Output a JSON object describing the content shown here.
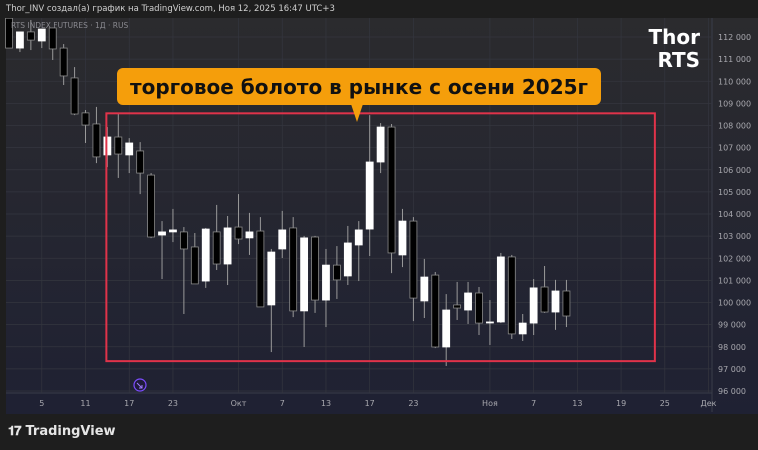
{
  "header": {
    "text": "Thor_INV создал(а) график на TradingView.com, Ноя 12, 2025 16:47 UTC+3"
  },
  "legend": {
    "symbol": "RTS INDEX FUTURES · 1Д · RUS"
  },
  "watermark": {
    "line1": "Thor",
    "line2": "RTS"
  },
  "annotation": {
    "text": "торговое болото в рынке с осени 2025г",
    "color": "#f59e0b"
  },
  "footer": {
    "brand": "TradingView",
    "logo": "TV"
  },
  "event_icon": "arrow-circle-icon",
  "chart_data": {
    "type": "candlestick",
    "title": "",
    "timeframe": "1D",
    "ylim": [
      96000,
      113000
    ],
    "grid": true,
    "colors": {
      "up": "#ffffff",
      "down": "#000000",
      "wick": "#9a9a9a",
      "box": "#e0334a",
      "background_top": "#2b2b2e",
      "background_bottom": "#1f2133"
    },
    "y_ticks": [
      112000,
      111000,
      110000,
      109000,
      108000,
      107000,
      106000,
      105000,
      104000,
      103000,
      102000,
      101000,
      100000,
      99000,
      98000,
      97000,
      96000
    ],
    "y_tick_labels": [
      "112 000",
      "111 000",
      "110 000",
      "109 000",
      "108 000",
      "107 000",
      "106 000",
      "105 000",
      "104 000",
      "103 000",
      "102 000",
      "101 000",
      "100 000",
      "99 000",
      "98 000",
      "97 000",
      "96 000"
    ],
    "x_ticks": [
      {
        "label": "5",
        "date": "2025-09-05"
      },
      {
        "label": "11",
        "date": "2025-09-11"
      },
      {
        "label": "17",
        "date": "2025-09-17"
      },
      {
        "label": "23",
        "date": "2025-09-23"
      },
      {
        "label": "Окт",
        "date": "2025-10-01"
      },
      {
        "label": "7",
        "date": "2025-10-07"
      },
      {
        "label": "13",
        "date": "2025-10-13"
      },
      {
        "label": "17",
        "date": "2025-10-17"
      },
      {
        "label": "23",
        "date": "2025-10-23"
      },
      {
        "label": "Ноя",
        "date": "2025-11-01"
      },
      {
        "label": "7",
        "date": "2025-11-07"
      },
      {
        "label": "13",
        "date": "2025-11-13"
      },
      {
        "label": "19",
        "date": "2025-11-19"
      },
      {
        "label": "25",
        "date": "2025-11-25"
      },
      {
        "label": "Дек",
        "date": "2025-12-01"
      }
    ],
    "highlight_box": {
      "from_date": "2025-09-15",
      "to_date": "2025-11-24",
      "high": 108550,
      "low": 97350
    },
    "candles": [
      {
        "date": "2025-09-02",
        "o": 112850,
        "h": 112850,
        "l": 111500,
        "c": 111500
      },
      {
        "date": "2025-09-03",
        "o": 111500,
        "h": 112230,
        "l": 111320,
        "c": 112230
      },
      {
        "date": "2025-09-04",
        "o": 112230,
        "h": 112770,
        "l": 111410,
        "c": 111860
      },
      {
        "date": "2025-09-05",
        "o": 111820,
        "h": 112360,
        "l": 111500,
        "c": 112360
      },
      {
        "date": "2025-09-08",
        "o": 112410,
        "h": 112410,
        "l": 110960,
        "c": 111460
      },
      {
        "date": "2025-09-09",
        "o": 111500,
        "h": 111680,
        "l": 109830,
        "c": 110240
      },
      {
        "date": "2025-09-10",
        "o": 110150,
        "h": 110640,
        "l": 108470,
        "c": 108520
      },
      {
        "date": "2025-09-11",
        "o": 108570,
        "h": 108700,
        "l": 107210,
        "c": 108020
      },
      {
        "date": "2025-09-12",
        "o": 108070,
        "h": 108840,
        "l": 106300,
        "c": 106580
      },
      {
        "date": "2025-09-15",
        "o": 106670,
        "h": 107930,
        "l": 106120,
        "c": 107480
      },
      {
        "date": "2025-09-16",
        "o": 107480,
        "h": 108520,
        "l": 105630,
        "c": 106710
      },
      {
        "date": "2025-09-17",
        "o": 106670,
        "h": 107430,
        "l": 105850,
        "c": 107210
      },
      {
        "date": "2025-09-18",
        "o": 106850,
        "h": 107250,
        "l": 104900,
        "c": 105850
      },
      {
        "date": "2025-09-19",
        "o": 105760,
        "h": 105850,
        "l": 102910,
        "c": 102960
      },
      {
        "date": "2025-09-22",
        "o": 103050,
        "h": 103680,
        "l": 101060,
        "c": 103190
      },
      {
        "date": "2025-09-23",
        "o": 103190,
        "h": 104230,
        "l": 102730,
        "c": 103280
      },
      {
        "date": "2025-09-24",
        "o": 103190,
        "h": 103410,
        "l": 99480,
        "c": 102420
      },
      {
        "date": "2025-09-25",
        "o": 102510,
        "h": 103140,
        "l": 100840,
        "c": 100840
      },
      {
        "date": "2025-09-26",
        "o": 100970,
        "h": 103370,
        "l": 100660,
        "c": 103320
      },
      {
        "date": "2025-09-29",
        "o": 103190,
        "h": 104410,
        "l": 101470,
        "c": 101740
      },
      {
        "date": "2025-09-30",
        "o": 101740,
        "h": 103910,
        "l": 100790,
        "c": 103370
      },
      {
        "date": "2025-10-01",
        "o": 103410,
        "h": 104900,
        "l": 102640,
        "c": 102870
      },
      {
        "date": "2025-10-02",
        "o": 102920,
        "h": 104050,
        "l": 102150,
        "c": 103190
      },
      {
        "date": "2025-10-03",
        "o": 103230,
        "h": 103860,
        "l": 99800,
        "c": 99800
      },
      {
        "date": "2025-10-06",
        "o": 99890,
        "h": 102420,
        "l": 97760,
        "c": 102280
      },
      {
        "date": "2025-10-07",
        "o": 102420,
        "h": 104140,
        "l": 102010,
        "c": 103280
      },
      {
        "date": "2025-10-08",
        "o": 103370,
        "h": 103860,
        "l": 99340,
        "c": 99620
      },
      {
        "date": "2025-10-09",
        "o": 99620,
        "h": 103010,
        "l": 97990,
        "c": 102920
      },
      {
        "date": "2025-10-10",
        "o": 102960,
        "h": 103010,
        "l": 99530,
        "c": 100110
      },
      {
        "date": "2025-10-13",
        "o": 100110,
        "h": 102420,
        "l": 98890,
        "c": 101690
      },
      {
        "date": "2025-10-14",
        "o": 101690,
        "h": 102550,
        "l": 100160,
        "c": 101020
      },
      {
        "date": "2025-10-15",
        "o": 101200,
        "h": 103460,
        "l": 100790,
        "c": 102690
      },
      {
        "date": "2025-10-16",
        "o": 102600,
        "h": 103680,
        "l": 100970,
        "c": 103280
      },
      {
        "date": "2025-10-17",
        "o": 103320,
        "h": 108470,
        "l": 102100,
        "c": 106350
      },
      {
        "date": "2025-10-20",
        "o": 106350,
        "h": 108110,
        "l": 105850,
        "c": 107930
      },
      {
        "date": "2025-10-21",
        "o": 107930,
        "h": 108070,
        "l": 101330,
        "c": 102240
      },
      {
        "date": "2025-10-22",
        "o": 102150,
        "h": 104230,
        "l": 101600,
        "c": 103680
      },
      {
        "date": "2025-10-23",
        "o": 103680,
        "h": 103860,
        "l": 99160,
        "c": 100200
      },
      {
        "date": "2025-10-24",
        "o": 100070,
        "h": 101970,
        "l": 99300,
        "c": 101150
      },
      {
        "date": "2025-10-27",
        "o": 101240,
        "h": 101380,
        "l": 97940,
        "c": 97990
      },
      {
        "date": "2025-10-28",
        "o": 97990,
        "h": 100380,
        "l": 97130,
        "c": 99660
      },
      {
        "date": "2025-10-29",
        "o": 99890,
        "h": 100930,
        "l": 99210,
        "c": 99750
      },
      {
        "date": "2025-10-30",
        "o": 99660,
        "h": 100930,
        "l": 99030,
        "c": 100430
      },
      {
        "date": "2025-10-31",
        "o": 100430,
        "h": 100700,
        "l": 98530,
        "c": 99070
      },
      {
        "date": "2025-11-01",
        "o": 99120,
        "h": 100110,
        "l": 98080,
        "c": 99120
      },
      {
        "date": "2025-11-03",
        "o": 99120,
        "h": 102240,
        "l": 99070,
        "c": 102060
      },
      {
        "date": "2025-11-05",
        "o": 102060,
        "h": 102150,
        "l": 98350,
        "c": 98580
      },
      {
        "date": "2025-11-06",
        "o": 98580,
        "h": 99480,
        "l": 98260,
        "c": 99070
      },
      {
        "date": "2025-11-07",
        "o": 99070,
        "h": 101060,
        "l": 98530,
        "c": 100660
      },
      {
        "date": "2025-11-10",
        "o": 100700,
        "h": 101650,
        "l": 99530,
        "c": 99570
      },
      {
        "date": "2025-11-11",
        "o": 99570,
        "h": 101020,
        "l": 98760,
        "c": 100520
      },
      {
        "date": "2025-11-12",
        "o": 100520,
        "h": 101020,
        "l": 98890,
        "c": 99390
      }
    ]
  }
}
